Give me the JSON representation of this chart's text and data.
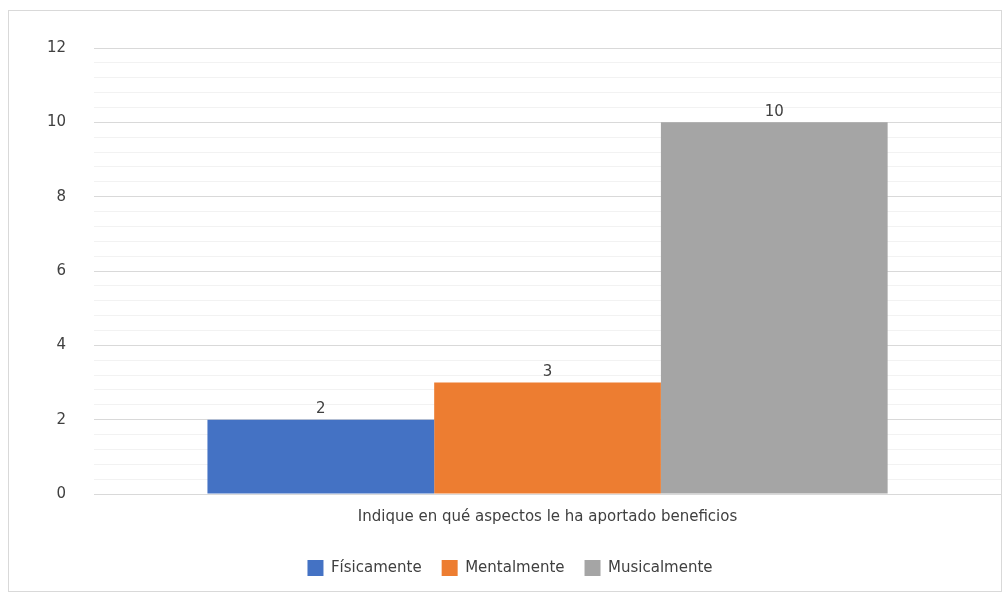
{
  "chart_data": {
    "type": "bar",
    "categories": [
      "Indique en qué aspectos le ha aportado beneficios"
    ],
    "series": [
      {
        "name": "Físicamente",
        "color": "#4472c4",
        "values": [
          2
        ]
      },
      {
        "name": "Mentalmente",
        "color": "#ed7d31",
        "values": [
          3
        ]
      },
      {
        "name": "Musicalmente",
        "color": "#a5a5a5",
        "values": [
          10
        ]
      }
    ],
    "ylim": [
      0,
      12
    ],
    "yticks": [
      0,
      {
        "value": 0.4,
        "label": null
      },
      {
        "value": 0.8,
        "label": null
      },
      {
        "value": 1.2,
        "label": null
      },
      {
        "value": 1.6,
        "label": null
      },
      2,
      {
        "value": 2.4,
        "label": null
      },
      {
        "value": 2.8,
        "label": null
      },
      {
        "value": 3.2,
        "label": null
      },
      {
        "value": 3.6,
        "label": null
      },
      4,
      {
        "value": 4.4,
        "label": null
      },
      {
        "value": 4.8,
        "label": null
      },
      {
        "value": 5.2,
        "label": null
      },
      {
        "value": 5.6,
        "label": null
      },
      6,
      {
        "value": 6.4,
        "label": null
      },
      {
        "value": 6.8,
        "label": null
      },
      {
        "value": 7.2,
        "label": null
      },
      {
        "value": 7.6,
        "label": null
      },
      8,
      {
        "value": 8.4,
        "label": null
      },
      {
        "value": 8.8,
        "label": null
      },
      {
        "value": 9.2,
        "label": null
      },
      {
        "value": 9.6,
        "label": null
      },
      10,
      {
        "value": 10.4,
        "label": null
      },
      {
        "value": 10.8,
        "label": null
      },
      {
        "value": 11.2,
        "label": null
      },
      {
        "value": 11.6,
        "label": null
      },
      12
    ],
    "grid": "y",
    "legend": "bottom",
    "data_labels": true
  }
}
